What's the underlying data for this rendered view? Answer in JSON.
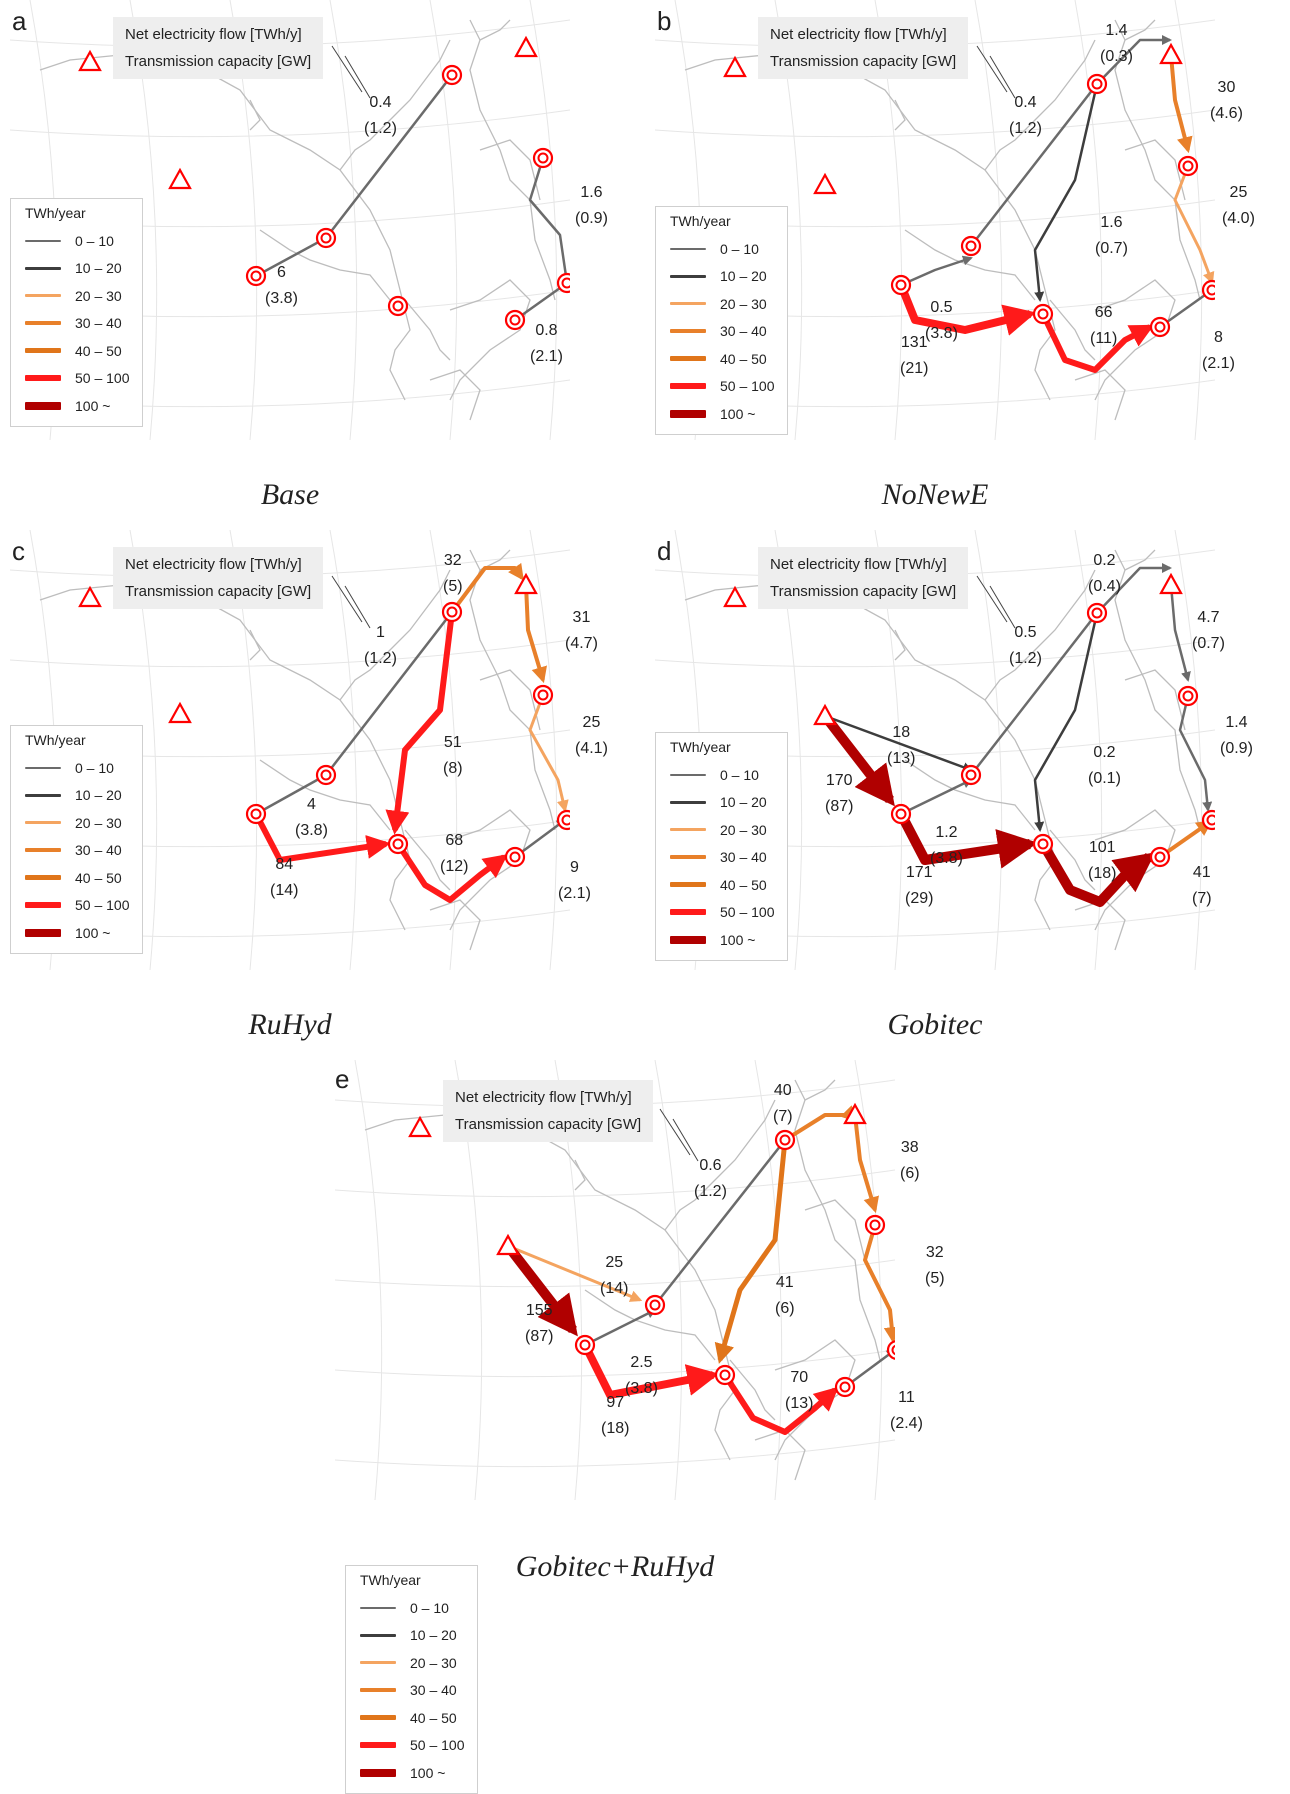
{
  "panels": [
    {
      "letter": "a",
      "caption": "Base",
      "legend": {
        "flow": "Net electricity flow [TWh/y]",
        "cap": "Transmission capacity [GW]"
      },
      "pointer_label": {
        "v": "0.4",
        "c": "(1.2)"
      },
      "labels": [
        {
          "id": "1",
          "v": "6",
          "c": "(3.8)"
        },
        {
          "id": "2",
          "v": "1.6",
          "c": "(0.9)"
        },
        {
          "id": "3",
          "v": "0.8",
          "c": "(2.1)"
        }
      ]
    },
    {
      "letter": "b",
      "caption": "NoNewE",
      "legend": {
        "flow": "Net electricity flow [TWh/y]",
        "cap": "Transmission capacity [GW]"
      },
      "pointer_label": {
        "v": "0.4",
        "c": "(1.2)"
      },
      "labels": [
        {
          "id": "1",
          "v": "1.4",
          "c": "(0.3)"
        },
        {
          "id": "2",
          "v": "30",
          "c": "(4.6)"
        },
        {
          "id": "3",
          "v": "25",
          "c": "(4.0)"
        },
        {
          "id": "4",
          "v": "1.6",
          "c": "(0.7)"
        },
        {
          "id": "5",
          "v": "0.5",
          "c": "(3.8)"
        },
        {
          "id": "6",
          "v": "66",
          "c": "(11)"
        },
        {
          "id": "7",
          "v": "131",
          "c": "(21)"
        },
        {
          "id": "8",
          "v": "8",
          "c": "(2.1)"
        }
      ]
    },
    {
      "letter": "c",
      "caption": "RuHyd",
      "legend": {
        "flow": "Net electricity flow [TWh/y]",
        "cap": "Transmission capacity [GW]"
      },
      "pointer_label": {
        "v": "1",
        "c": "(1.2)"
      },
      "labels": [
        {
          "id": "1",
          "v": "32",
          "c": "(5)"
        },
        {
          "id": "2",
          "v": "31",
          "c": "(4.7)"
        },
        {
          "id": "3",
          "v": "25",
          "c": "(4.1)"
        },
        {
          "id": "4",
          "v": "51",
          "c": "(8)"
        },
        {
          "id": "5",
          "v": "4",
          "c": "(3.8)"
        },
        {
          "id": "6",
          "v": "68",
          "c": "(12)"
        },
        {
          "id": "7",
          "v": "84",
          "c": "(14)"
        },
        {
          "id": "8",
          "v": "9",
          "c": "(2.1)"
        }
      ]
    },
    {
      "letter": "d",
      "caption": "Gobitec",
      "legend": {
        "flow": "Net electricity flow [TWh/y]",
        "cap": "Transmission capacity [GW]"
      },
      "pointer_label": {
        "v": "0.5",
        "c": "(1.2)"
      },
      "labels": [
        {
          "id": "1",
          "v": "0.2",
          "c": "(0.4)"
        },
        {
          "id": "2",
          "v": "4.7",
          "c": "(0.7)"
        },
        {
          "id": "3",
          "v": "1.4",
          "c": "(0.9)"
        },
        {
          "id": "4",
          "v": "18",
          "c": "(13)"
        },
        {
          "id": "5",
          "v": "0.2",
          "c": "(0.1)"
        },
        {
          "id": "6",
          "v": "170",
          "c": "(87)"
        },
        {
          "id": "7",
          "v": "1.2",
          "c": "(3.8)"
        },
        {
          "id": "8",
          "v": "101",
          "c": "(18)"
        },
        {
          "id": "9",
          "v": "171",
          "c": "(29)"
        },
        {
          "id": "10",
          "v": "41",
          "c": "(7)"
        }
      ]
    },
    {
      "letter": "e",
      "caption": "Gobitec+RuHyd",
      "legend": {
        "flow": "Net electricity flow [TWh/y]",
        "cap": "Transmission capacity [GW]"
      },
      "pointer_label": {
        "v": "0.6",
        "c": "(1.2)"
      },
      "labels": [
        {
          "id": "1",
          "v": "40",
          "c": "(7)"
        },
        {
          "id": "2",
          "v": "38",
          "c": "(6)"
        },
        {
          "id": "3",
          "v": "25",
          "c": "(14)"
        },
        {
          "id": "4",
          "v": "32",
          "c": "(5)"
        },
        {
          "id": "5",
          "v": "41",
          "c": "(6)"
        },
        {
          "id": "6",
          "v": "155",
          "c": "(87)"
        },
        {
          "id": "7",
          "v": "2.5",
          "c": "(3.8)"
        },
        {
          "id": "8",
          "v": "70",
          "c": "(13)"
        },
        {
          "id": "9",
          "v": "97",
          "c": "(18)"
        },
        {
          "id": "10",
          "v": "11",
          "c": "(2.4)"
        }
      ]
    }
  ],
  "flow_legend": {
    "title": "TWh/year",
    "classes": [
      {
        "label": "0 – 10",
        "color": "#6b6b6b"
      },
      {
        "label": "10 – 20",
        "color": "#3d3d3d"
      },
      {
        "label": "20 – 30",
        "color": "#f4a460"
      },
      {
        "label": "30 – 40",
        "color": "#e8802a"
      },
      {
        "label": "40 – 50",
        "color": "#e0751a"
      },
      {
        "label": "50 – 100",
        "color": "#ff1a1a"
      },
      {
        "label": "100 ~",
        "color": "#b00000"
      }
    ]
  },
  "symbols": {
    "demand_node": "bullseye-icon",
    "supply_site": "triangle-icon",
    "marker_color": "#ff0000"
  }
}
